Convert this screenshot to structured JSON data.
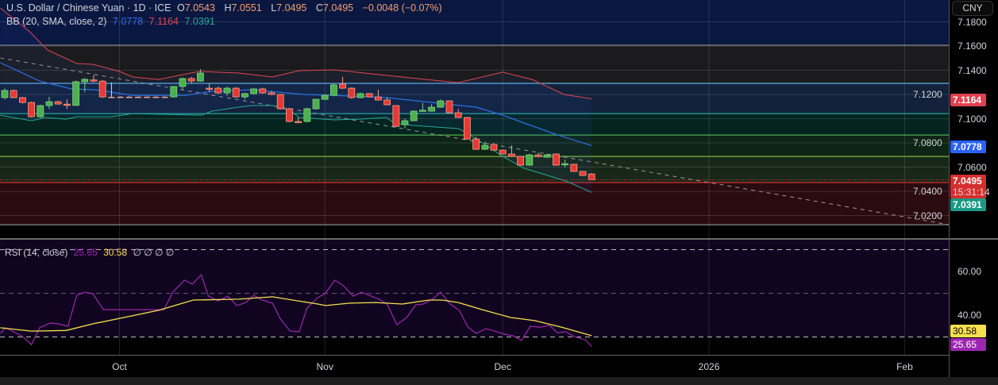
{
  "header": {
    "symbol": "U.S. Dollar / Chinese Yuan · 1D · ICE",
    "o_label": "O",
    "open": "7.0543",
    "h_label": "H",
    "high": "7.0551",
    "l_label": "L",
    "low": "7.0495",
    "c_label": "C",
    "close": "7.0495",
    "change": "−0.0048 (−0.07%)"
  },
  "bb_legend": {
    "label": "BB (20, SMA, close, 2)",
    "basis": "7.0778",
    "upper": "7.1164",
    "lower": "7.0391"
  },
  "rsi_legend": {
    "label": "RSI (14, close)",
    "rsi": "25.65",
    "ma": "30.58",
    "extra": "∅ ∅ ∅ ∅"
  },
  "currency_button": "CNY",
  "price_badges": {
    "upper": "7.1164",
    "basis": "7.0778",
    "last": "7.0495",
    "countdown": "15:31:14",
    "lower": "7.0391"
  },
  "rsi_badges": {
    "ma": "30.58",
    "rsi": "25.65"
  },
  "colors": {
    "up": "#4caf50",
    "down": "#e53935",
    "down_border": "#f7a08a",
    "bb_upper": "#e04555",
    "bb_basis": "#2f6fe6",
    "bb_lower": "#26a69a",
    "rsi": "#9c27b0",
    "rsi_ma": "#f5e050"
  },
  "chart_data": [
    {
      "type": "candlestick",
      "title": "U.S. Dollar / Chinese Yuan · 1D · ICE",
      "ylabel": "CNY",
      "ylim": [
        7.005,
        7.195
      ],
      "y_ticks": [
        "7.1800",
        "7.1600",
        "7.1400",
        "7.1200",
        "7.1000",
        "7.0800",
        "7.0600",
        "7.0400",
        "7.0200"
      ],
      "y_tick_values": [
        7.18,
        7.16,
        7.14,
        7.12,
        7.1,
        7.08,
        7.06,
        7.04,
        7.02
      ],
      "x_ticks": [
        {
          "label": "Oct",
          "index": 12.9
        },
        {
          "label": "Nov",
          "index": 36
        },
        {
          "label": "Dec",
          "index": 56
        },
        {
          "label": "2026",
          "index": 79.2
        },
        {
          "label": "Feb",
          "index": 101.2
        }
      ],
      "x_range": [
        -0.5,
        106.2
      ],
      "ohlc": [
        [
          7.1174,
          7.125,
          7.116,
          7.1233
        ],
        [
          7.1233,
          7.124,
          7.117,
          7.1174
        ],
        [
          7.1174,
          7.118,
          7.1125,
          7.1134
        ],
        [
          7.1134,
          7.114,
          7.101,
          7.1016
        ],
        [
          7.1016,
          7.1115,
          7.1005,
          7.1108
        ],
        [
          7.1108,
          7.118,
          7.108,
          7.114
        ],
        [
          7.114,
          7.115,
          7.1115,
          7.1121
        ],
        [
          7.112,
          7.116,
          7.108,
          7.111
        ],
        [
          7.111,
          7.1315,
          7.1105,
          7.1305
        ],
        [
          7.1305,
          7.1335,
          7.122,
          7.1325
        ],
        [
          7.132,
          7.136,
          7.13,
          7.131
        ],
        [
          7.131,
          7.132,
          7.117,
          7.118
        ],
        [
          7.118,
          7.13,
          7.1175,
          7.118
        ],
        [
          7.118,
          7.1185,
          7.1178,
          7.1181
        ],
        [
          7.118,
          7.1185,
          7.1178,
          7.1181
        ],
        [
          7.118,
          7.1185,
          7.1178,
          7.1181
        ],
        [
          7.118,
          7.1185,
          7.1178,
          7.1181
        ],
        [
          7.118,
          7.1185,
          7.1178,
          7.1181
        ],
        [
          7.118,
          7.1185,
          7.1178,
          7.1181
        ],
        [
          7.118,
          7.127,
          7.1175,
          7.1266
        ],
        [
          7.1266,
          7.134,
          7.124,
          7.1331
        ],
        [
          7.1331,
          7.1345,
          7.129,
          7.1311
        ],
        [
          7.1311,
          7.141,
          7.1305,
          7.1377
        ],
        [
          7.1252,
          7.129,
          7.122,
          7.125
        ],
        [
          7.1252,
          7.1265,
          7.1205,
          7.1213
        ],
        [
          7.1213,
          7.1265,
          7.119,
          7.1252
        ],
        [
          7.1252,
          7.126,
          7.1175,
          7.118
        ],
        [
          7.118,
          7.1215,
          7.116,
          7.1207
        ],
        [
          7.1207,
          7.125,
          7.12,
          7.1246
        ],
        [
          7.1246,
          7.1255,
          7.1205,
          7.1213
        ],
        [
          7.1213,
          7.123,
          7.1195,
          7.12
        ],
        [
          7.12,
          7.1205,
          7.1075,
          7.1082
        ],
        [
          7.1082,
          7.109,
          7.097,
          7.0977
        ],
        [
          7.0977,
          7.101,
          7.0965,
          7.0972
        ],
        [
          7.0977,
          7.109,
          7.097,
          7.1082
        ],
        [
          7.1082,
          7.1165,
          7.1075,
          7.116
        ],
        [
          7.116,
          7.12,
          7.1155,
          7.1193
        ],
        [
          7.1193,
          7.129,
          7.1185,
          7.1279
        ],
        [
          7.1285,
          7.1345,
          7.1245,
          7.1252
        ],
        [
          7.1252,
          7.1258,
          7.1165,
          7.1174
        ],
        [
          7.1174,
          7.1215,
          7.1168,
          7.1207
        ],
        [
          7.1207,
          7.1212,
          7.1175,
          7.118
        ],
        [
          7.118,
          7.124,
          7.115,
          7.1154
        ],
        [
          7.1154,
          7.1175,
          7.111,
          7.1115
        ],
        [
          7.1108,
          7.1112,
          7.093,
          7.0937
        ],
        [
          7.095,
          7.1,
          7.092,
          7.0983
        ],
        [
          7.0983,
          7.1068,
          7.0978,
          7.1062
        ],
        [
          7.1068,
          7.113,
          7.106,
          7.107
        ],
        [
          7.1062,
          7.112,
          7.1058,
          7.1095
        ],
        [
          7.1095,
          7.116,
          7.109,
          7.1147
        ],
        [
          7.1147,
          7.1152,
          7.1045,
          7.1049
        ],
        [
          7.1049,
          7.108,
          7.1005,
          7.101
        ],
        [
          7.101,
          7.1015,
          7.0828,
          7.0832
        ],
        [
          7.0832,
          7.085,
          7.0742,
          7.0747
        ],
        [
          7.0747,
          7.081,
          7.0742,
          7.078
        ],
        [
          7.0787,
          7.08,
          7.0735,
          7.074
        ],
        [
          7.074,
          7.0745,
          7.0704,
          7.0708
        ],
        [
          7.0708,
          7.078,
          7.0684,
          7.0688
        ],
        [
          7.0688,
          7.0692,
          7.0612,
          7.0616
        ],
        [
          7.0616,
          7.071,
          7.0612,
          7.0701
        ],
        [
          7.0701,
          7.072,
          7.068,
          7.0688
        ],
        [
          7.0682,
          7.071,
          7.0676,
          7.0701
        ],
        [
          7.0708,
          7.0712,
          7.0612,
          7.0616
        ],
        [
          7.0622,
          7.066,
          7.06,
          7.0628
        ],
        [
          7.0623,
          7.0628,
          7.056,
          7.0564
        ],
        [
          7.0564,
          7.0568,
          7.0527,
          7.0531
        ],
        [
          7.0543,
          7.0551,
          7.0495,
          7.0495
        ]
      ],
      "bb_upper": [
        [
          -0.5,
          7.1915
        ],
        [
          2.8,
          7.1718
        ],
        [
          4.8,
          7.1567
        ],
        [
          8.1,
          7.1456
        ],
        [
          9.9,
          7.1449
        ],
        [
          12.9,
          7.139
        ],
        [
          14.4,
          7.1344
        ],
        [
          17.3,
          7.1324
        ],
        [
          21.8,
          7.139
        ],
        [
          26.3,
          7.1377
        ],
        [
          30.1,
          7.1344
        ],
        [
          33.1,
          7.1397
        ],
        [
          37,
          7.1403
        ],
        [
          41.4,
          7.137
        ],
        [
          47.4,
          7.1324
        ],
        [
          51,
          7.1298
        ],
        [
          56,
          7.1384
        ],
        [
          59.3,
          7.1324
        ],
        [
          62.9,
          7.12
        ],
        [
          66,
          7.1164
        ]
      ],
      "bb_basis": [
        [
          -0.5,
          7.1462
        ],
        [
          3.9,
          7.1311
        ],
        [
          7.5,
          7.1246
        ],
        [
          10.2,
          7.1239
        ],
        [
          14.4,
          7.1193
        ],
        [
          20.3,
          7.1193
        ],
        [
          23.3,
          7.1226
        ],
        [
          27.8,
          7.1239
        ],
        [
          33.7,
          7.12
        ],
        [
          37,
          7.1193
        ],
        [
          42.9,
          7.1174
        ],
        [
          48.8,
          7.1128
        ],
        [
          53,
          7.1095
        ],
        [
          56,
          7.1029
        ],
        [
          58.4,
          7.0964
        ],
        [
          62.2,
          7.0865
        ],
        [
          66,
          7.0778
        ]
      ],
      "bb_lower": [
        [
          -0.5,
          7.1029
        ],
        [
          3,
          7.0983
        ],
        [
          4.6,
          7.101
        ],
        [
          6.9,
          7.0996
        ],
        [
          8.1,
          7.1016
        ],
        [
          12,
          7.1016
        ],
        [
          14.4,
          7.1042
        ],
        [
          22.1,
          7.1029
        ],
        [
          23.3,
          7.1062
        ],
        [
          26.3,
          7.1095
        ],
        [
          27.8,
          7.1108
        ],
        [
          30.1,
          7.1108
        ],
        [
          32.2,
          7.1062
        ],
        [
          33.1,
          7.101
        ],
        [
          37,
          7.099
        ],
        [
          39.9,
          7.0996
        ],
        [
          42.9,
          7.101
        ],
        [
          43.8,
          7.0964
        ],
        [
          45.9,
          7.0944
        ],
        [
          51,
          7.0918
        ],
        [
          51.9,
          7.0885
        ],
        [
          53.7,
          7.08
        ],
        [
          56,
          7.0688
        ],
        [
          58.4,
          7.059
        ],
        [
          60.8,
          7.0537
        ],
        [
          63.1,
          7.0485
        ],
        [
          66,
          7.0391
        ]
      ],
      "trendline": [
        [
          -0.5,
          7.1502
        ],
        [
          106.2,
          7.0124
        ]
      ],
      "levels": [
        7.1607,
        7.1292,
        7.1042,
        7.0865,
        7.0688,
        7.0472,
        7.0124
      ],
      "last_price": 7.0495
    },
    {
      "type": "line",
      "title": "RSI (14, close)",
      "ylim": [
        21.8,
        75.3
      ],
      "y_ticks": [
        "60.00",
        "40.00"
      ],
      "y_tick_values": [
        60,
        40
      ],
      "bands": [
        70,
        50,
        30
      ],
      "rsi": [
        [
          -0.5,
          31.6
        ],
        [
          0.1,
          34.2
        ],
        [
          1.9,
          30.5
        ],
        [
          3,
          26.5
        ],
        [
          3.9,
          34.2
        ],
        [
          5.1,
          36.4
        ],
        [
          6,
          36
        ],
        [
          7.1,
          34.9
        ],
        [
          8.1,
          49.1
        ],
        [
          9,
          50.5
        ],
        [
          9.9,
          49.8
        ],
        [
          11.1,
          42.5
        ],
        [
          17.9,
          42.5
        ],
        [
          18.9,
          50.5
        ],
        [
          20.2,
          56
        ],
        [
          21.1,
          54.2
        ],
        [
          22.1,
          58.5
        ],
        [
          22.9,
          48.7
        ],
        [
          24,
          46.5
        ],
        [
          25.1,
          48.7
        ],
        [
          26.1,
          44.4
        ],
        [
          27.1,
          45.8
        ],
        [
          28,
          49.1
        ],
        [
          28.9,
          46.9
        ],
        [
          30.1,
          45.5
        ],
        [
          31,
          38.2
        ],
        [
          32.1,
          32.7
        ],
        [
          33.1,
          32.4
        ],
        [
          34,
          43.3
        ],
        [
          35.2,
          48
        ],
        [
          36.1,
          50.2
        ],
        [
          37.1,
          56
        ],
        [
          38,
          53.8
        ],
        [
          39.2,
          48.7
        ],
        [
          40.1,
          50.5
        ],
        [
          41.2,
          48.7
        ],
        [
          42.1,
          47.3
        ],
        [
          43,
          45.1
        ],
        [
          44.1,
          35.6
        ],
        [
          45.2,
          38.9
        ],
        [
          46.2,
          44.7
        ],
        [
          47.1,
          45.1
        ],
        [
          48.1,
          47.3
        ],
        [
          49,
          50.5
        ],
        [
          50.1,
          45.1
        ],
        [
          51.1,
          42.2
        ],
        [
          52.1,
          34.5
        ],
        [
          53,
          31.6
        ],
        [
          54.1,
          33.8
        ],
        [
          55.1,
          32.7
        ],
        [
          56.2,
          31.3
        ],
        [
          57.2,
          30.5
        ],
        [
          58.1,
          28.4
        ],
        [
          59.1,
          34.9
        ],
        [
          60.2,
          34.5
        ],
        [
          61.3,
          35.3
        ],
        [
          62.1,
          32
        ],
        [
          63.1,
          32.4
        ],
        [
          64,
          30.2
        ],
        [
          65.3,
          28.7
        ],
        [
          66,
          25.65
        ]
      ],
      "rsi_ma": [
        [
          -0.5,
          34.2
        ],
        [
          3,
          32.7
        ],
        [
          6.9,
          33
        ],
        [
          9.9,
          36
        ],
        [
          12.9,
          38.5
        ],
        [
          17.3,
          42.2
        ],
        [
          21.2,
          46.9
        ],
        [
          26.3,
          47.3
        ],
        [
          30.1,
          48.4
        ],
        [
          35.2,
          45.1
        ],
        [
          36.1,
          44.4
        ],
        [
          38.8,
          45.5
        ],
        [
          41.7,
          45.8
        ],
        [
          44.7,
          45.1
        ],
        [
          47.7,
          46.9
        ],
        [
          49.2,
          46.9
        ],
        [
          51,
          45.8
        ],
        [
          53.7,
          42.5
        ],
        [
          56.9,
          38.9
        ],
        [
          59.6,
          37.5
        ],
        [
          62.6,
          34.5
        ],
        [
          66,
          30.58
        ]
      ]
    }
  ]
}
